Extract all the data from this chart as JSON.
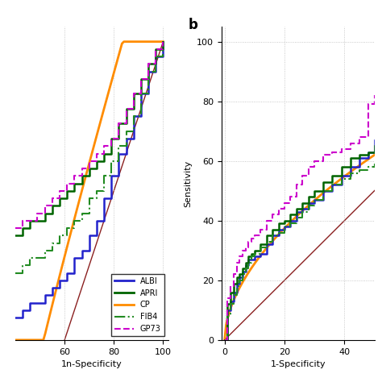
{
  "colors": {
    "ALBI": "#2222cc",
    "APRI": "#006400",
    "CP": "#ff8c00",
    "FIB4": "#228B22",
    "GP73": "#cc00cc",
    "reference": "#8B2020"
  },
  "linestyles": {
    "ALBI": "solid",
    "APRI": "solid",
    "CP": "solid",
    "FIB4": "dashdot",
    "GP73": "dashed"
  },
  "linewidths": {
    "ALBI": 1.8,
    "APRI": 1.8,
    "CP": 2.0,
    "FIB4": 1.5,
    "GP73": 1.5
  },
  "panel_a": {
    "xlim": [
      40,
      102
    ],
    "ylim": [
      60,
      102
    ],
    "xticks": [
      60,
      80,
      100
    ],
    "yticks": [],
    "xlabel": "1n-Specificity"
  },
  "panel_b": {
    "xlim": [
      -1,
      50
    ],
    "ylim": [
      0,
      105
    ],
    "xticks": [
      0,
      20,
      40
    ],
    "yticks": [
      0,
      20,
      40,
      60,
      80,
      100
    ],
    "xlabel": "1-Specificity",
    "ylabel": "Sensitivity"
  },
  "panel_b_label": "b",
  "legend_labels": [
    "ALBI",
    "APRI",
    "CP",
    "FIB4",
    "GP73"
  ]
}
